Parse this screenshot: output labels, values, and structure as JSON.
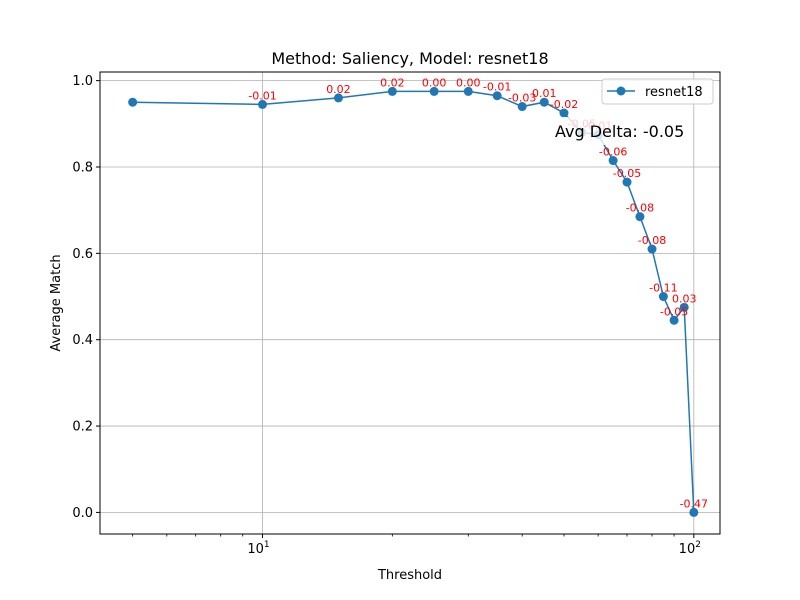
{
  "chart_data": {
    "type": "line",
    "title": "Method: Saliency, Model: resnet18",
    "xlabel": "Threshold",
    "ylabel": "Average Match",
    "xscale": "log",
    "xlim": [
      4.2,
      115
    ],
    "ylim": [
      -0.05,
      1.02
    ],
    "grid": true,
    "x_ticks": [
      {
        "value": 10,
        "base": "10",
        "exp": "1"
      },
      {
        "value": 100,
        "base": "10",
        "exp": "2"
      }
    ],
    "y_ticks": [
      "0.0",
      "0.2",
      "0.4",
      "0.6",
      "0.8",
      "1.0"
    ],
    "legend": {
      "position": "top-right"
    },
    "annotation": "Avg Delta: -0.05",
    "colors": {
      "series": "#1f77b4",
      "delta_label": "#ff0000",
      "grid": "#b0b0b0"
    },
    "series": [
      {
        "name": "resnet18",
        "x": [
          5,
          10,
          15,
          20,
          25,
          30,
          35,
          40,
          45,
          50,
          55,
          60,
          65,
          70,
          75,
          80,
          85,
          90,
          95,
          100
        ],
        "y": [
          0.95,
          0.945,
          0.96,
          0.975,
          0.975,
          0.975,
          0.965,
          0.94,
          0.95,
          0.925,
          0.88,
          0.875,
          0.815,
          0.765,
          0.685,
          0.61,
          0.5,
          0.445,
          0.475,
          0.0
        ],
        "delta_labels": [
          "",
          "-0.01",
          "0.02",
          "0.02",
          "0.00",
          "0.00",
          "-0.01",
          "-0.03",
          "0.01",
          "-0.02",
          "-0.05",
          "-0.01",
          "-0.06",
          "-0.05",
          "-0.08",
          "-0.08",
          "-0.11",
          "-0.05",
          "0.03",
          "-0.47"
        ]
      }
    ]
  }
}
